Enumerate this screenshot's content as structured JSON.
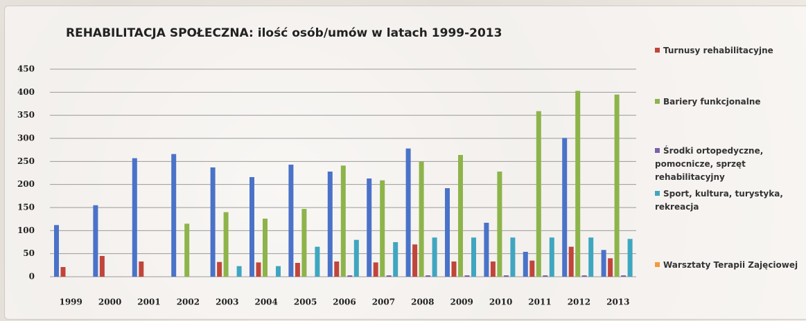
{
  "chart_data": {
    "type": "bar",
    "title": "REHABILITACJA SPOŁECZNA: ilość osób/umów w latach 1999-2013",
    "categories": [
      "1999",
      "2000",
      "2001",
      "2002",
      "2003",
      "2004",
      "2005",
      "2006",
      "2007",
      "2008",
      "2009",
      "2010",
      "2011",
      "2012",
      "2013"
    ],
    "series": [
      {
        "color": "#4a72c8",
        "values": [
          112,
          155,
          257,
          266,
          237,
          216,
          243,
          228,
          213,
          278,
          192,
          117,
          54,
          301,
          58
        ]
      },
      {
        "name": "Turnusy rehabilitacyjne",
        "color": "#c0453a",
        "values": [
          21,
          45,
          33,
          0,
          32,
          31,
          30,
          33,
          31,
          70,
          33,
          33,
          35,
          65,
          40
        ]
      },
      {
        "name": "Bariery funkcjonalne",
        "color": "#8db44a",
        "values": [
          0,
          0,
          0,
          115,
          140,
          126,
          147,
          241,
          209,
          250,
          264,
          228,
          359,
          403,
          395
        ]
      },
      {
        "name": "Środki ortopedyczne, pomocnicze, sprzęt rehabilitacyjny",
        "color": "#7d60a8",
        "values": [
          0,
          0,
          0,
          0,
          0,
          0,
          0,
          3,
          3,
          3,
          3,
          3,
          3,
          3,
          3
        ]
      },
      {
        "name": "Sport, kultura, turystyka, rekreacja",
        "color": "#3fa6c0",
        "values": [
          0,
          0,
          0,
          0,
          23,
          23,
          65,
          80,
          75,
          85,
          85,
          85,
          85,
          85,
          82
        ]
      },
      {
        "name": "Warsztaty Terapii Zajęciowej",
        "color": "#f29a3a",
        "values": [
          0,
          0,
          0,
          0,
          0,
          0,
          0,
          0,
          0,
          0,
          0,
          0,
          0,
          0,
          0
        ]
      }
    ],
    "ylim": [
      0,
      450
    ],
    "yticks": [
      0,
      50,
      100,
      150,
      200,
      250,
      300,
      350,
      400,
      450
    ],
    "grid": true,
    "legend": "right"
  }
}
